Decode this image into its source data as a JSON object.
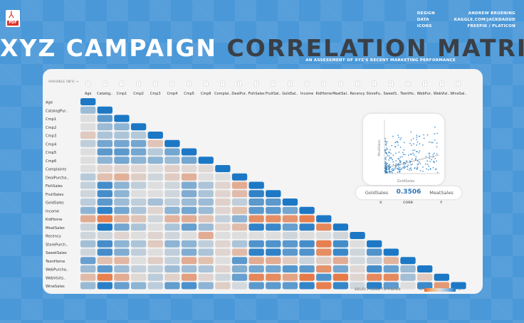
{
  "header": {
    "title_a": "XYZ CAMPAIGN",
    "title_b": "CORRELATION MATRIX",
    "subtitle": "AN ASSESSMENT OF XYZ'S RECENT MARKETING PERFORMANCE",
    "pdf_label": "PDF",
    "pdf_icon": "pdf-icon"
  },
  "credits": [
    {
      "key": "DESIGN",
      "value": "ANDREW BRUENING"
    },
    {
      "key": "DATA",
      "value": "KAGGLE.COM/JACKDAOUD"
    },
    {
      "key": "ICONS",
      "value": "FREEPIK / PLATICON"
    }
  ],
  "var_info_label": "VARIABLE INFO →",
  "info_marker": "!",
  "detail": {
    "x": "GoldSales",
    "corr": "0.3506",
    "y": "MeatSales",
    "x_label": "X",
    "corr_label": "CORR",
    "y_label": "Y",
    "scatter_title": "GoldSales",
    "scatter_ylabel": "MeatSales"
  },
  "filter_hint": "SELECT CELL TO FILTER",
  "legend": {
    "min": "-1",
    "max": "1"
  },
  "colors": {
    "background": "#4a98d8",
    "card": "#f4f4f4",
    "diag": "#1c78c5",
    "neg": "#e8672a",
    "pos": "#1c78c5",
    "neutral": "#dedede",
    "title_dark": "#3a3f46"
  },
  "chart_data": {
    "type": "heatmap",
    "title": "XYZ Campaign Correlation Matrix",
    "x_labels": [
      "Age",
      "Catalog..",
      "Cmp1",
      "Cmp2",
      "Cmp3",
      "Cmp4",
      "Cmp5",
      "Cmp6",
      "Complai..",
      "DealPur..",
      "FishSales",
      "FruitSal..",
      "GoldSal..",
      "Income",
      "KidHome",
      "MeatSal..",
      "Recency",
      "StorePu..",
      "SweetS..",
      "TeenHo..",
      "WebPur..",
      "WebVisi..",
      "WineSal.."
    ],
    "y_labels": [
      "Age",
      "CatalogPur..",
      "Cmp1",
      "Cmp2",
      "Cmp3",
      "Cmp4",
      "Cmp5",
      "Cmp6",
      "Complaints",
      "DealPurcha..",
      "FishSales",
      "FruitSales",
      "GoldSales",
      "Income",
      "KidHome",
      "MeatSales",
      "Recency",
      "StorePurch..",
      "SweetSales",
      "TeenHome",
      "WebPurcha..",
      "WebVisits..",
      "WineSales"
    ],
    "range": [
      -1,
      1
    ],
    "matrix": [
      [
        1
      ],
      [
        0.15,
        1
      ],
      [
        0.0,
        0.4,
        1
      ],
      [
        0.0,
        0.15,
        0.2,
        1
      ],
      [
        -0.06,
        0.1,
        0.1,
        0.08,
        1
      ],
      [
        0.05,
        0.3,
        0.3,
        0.3,
        -0.08,
        1
      ],
      [
        0.0,
        0.4,
        0.4,
        0.3,
        0.07,
        0.3,
        1
      ],
      [
        0.0,
        0.2,
        0.3,
        0.2,
        0.2,
        0.15,
        0.3,
        1
      ],
      [
        0.0,
        -0.02,
        -0.02,
        -0.01,
        0.0,
        -0.03,
        -0.01,
        -0.01,
        1
      ],
      [
        0.07,
        -0.1,
        -0.18,
        -0.04,
        0.02,
        -0.05,
        -0.18,
        0.0,
        0.0,
        1
      ],
      [
        0.04,
        0.5,
        0.2,
        0.05,
        0.0,
        0.02,
        0.25,
        0.1,
        -0.02,
        -0.2,
        1
      ],
      [
        0.02,
        0.5,
        0.2,
        0.0,
        0.0,
        0.02,
        0.25,
        0.1,
        -0.02,
        -0.12,
        0.6,
        1
      ],
      [
        0.06,
        0.4,
        0.15,
        0.05,
        0.12,
        0.05,
        0.15,
        0.15,
        -0.03,
        0.05,
        0.4,
        0.4,
        1
      ],
      [
        0.2,
        0.6,
        0.3,
        0.1,
        -0.02,
        0.2,
        0.3,
        0.15,
        -0.02,
        -0.1,
        0.4,
        0.4,
        0.3,
        1
      ],
      [
        -0.2,
        -0.5,
        -0.17,
        -0.08,
        0.02,
        -0.16,
        -0.2,
        -0.08,
        0.04,
        0.2,
        -0.4,
        -0.4,
        -0.35,
        -0.5,
        1
      ],
      [
        0.03,
        0.7,
        0.3,
        0.1,
        0.0,
        0.1,
        0.35,
        0.15,
        -0.02,
        -0.12,
        0.6,
        0.55,
        0.35,
        0.6,
        -0.45,
        1
      ],
      [
        0.02,
        0.02,
        -0.02,
        0.0,
        -0.02,
        0.02,
        0.0,
        -0.2,
        0.0,
        0.0,
        0.0,
        0.0,
        0.02,
        0.0,
        0.0,
        0.02,
        1
      ],
      [
        0.13,
        0.5,
        0.2,
        0.1,
        -0.06,
        0.2,
        0.2,
        0.05,
        -0.02,
        0.1,
        0.45,
        0.45,
        0.4,
        0.5,
        -0.5,
        0.5,
        0.0,
        1
      ],
      [
        0.02,
        0.5,
        0.25,
        0.05,
        0.0,
        0.05,
        0.25,
        0.1,
        -0.02,
        -0.12,
        0.6,
        0.6,
        0.4,
        0.45,
        -0.4,
        0.55,
        0.02,
        0.45,
        1
      ],
      [
        0.35,
        -0.1,
        -0.14,
        0.0,
        -0.04,
        0.04,
        -0.2,
        -0.1,
        0.0,
        0.4,
        -0.2,
        -0.2,
        -0.05,
        0.03,
        -0.04,
        -0.2,
        0.01,
        0.05,
        -0.16,
        1
      ],
      [
        0.15,
        0.4,
        0.15,
        0.04,
        0.04,
        0.14,
        0.14,
        0.1,
        -0.02,
        0.24,
        0.3,
        0.3,
        0.42,
        0.4,
        -0.36,
        0.3,
        -0.01,
        0.5,
        0.35,
        0.15,
        1
      ],
      [
        -0.12,
        -0.5,
        -0.2,
        -0.01,
        0.06,
        -0.03,
        -0.28,
        -0.02,
        0.02,
        0.35,
        -0.45,
        -0.42,
        -0.25,
        -0.55,
        0.45,
        -0.54,
        -0.02,
        -0.43,
        -0.43,
        0.13,
        -0.06,
        1
      ],
      [
        0.16,
        0.63,
        0.35,
        0.2,
        0.06,
        0.37,
        0.47,
        0.2,
        -0.04,
        0.01,
        0.4,
        0.39,
        0.39,
        0.58,
        -0.5,
        0.57,
        0.02,
        0.64,
        0.39,
        0.0,
        0.54,
        -0.32,
        1
      ]
    ]
  }
}
